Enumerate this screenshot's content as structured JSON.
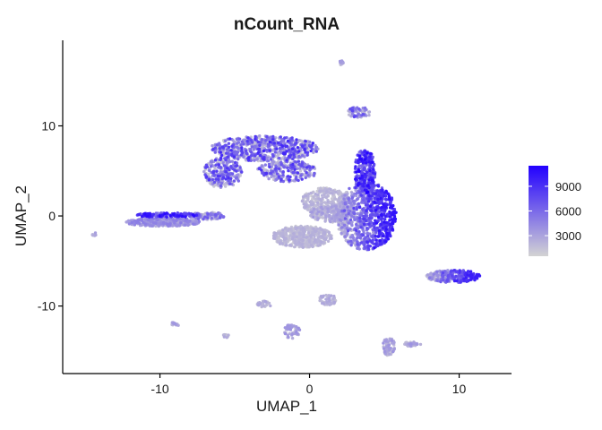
{
  "chart_data": {
    "type": "scatter",
    "title": "nCount_RNA",
    "xlabel": "UMAP_1",
    "ylabel": "UMAP_2",
    "xlim": [
      -16.5,
      13.5
    ],
    "ylim": [
      -17.5,
      19.5
    ],
    "xticks": [
      -10,
      0,
      10
    ],
    "xtick_labels": [
      "-10",
      "0",
      "10"
    ],
    "yticks": [
      -10,
      0,
      10
    ],
    "ytick_labels": [
      "-10",
      "0",
      "10"
    ],
    "grid": false,
    "color_scale": {
      "low_color": "#d3d3d3",
      "high_color": "#2200ff",
      "min": 500,
      "max": 11500,
      "breaks": [
        3000,
        6000,
        9000
      ],
      "break_labels": [
        "3000",
        "6000",
        "9000"
      ],
      "legend_position": "right"
    },
    "clusters": [
      {
        "cx": 2.2,
        "cy": 17.0,
        "rx": 0.2,
        "ry": 0.3,
        "n": 12,
        "lo": 1000,
        "hi": 3500,
        "grad": "none"
      },
      {
        "cx": 3.3,
        "cy": 11.5,
        "rx": 0.8,
        "ry": 0.6,
        "n": 60,
        "lo": 1500,
        "hi": 8000,
        "grad": "random"
      },
      {
        "cx": -3.0,
        "cy": 7.5,
        "rx": 3.6,
        "ry": 1.4,
        "n": 650,
        "lo": 1000,
        "hi": 9500,
        "grad": "random"
      },
      {
        "cx": -5.8,
        "cy": 4.8,
        "rx": 1.3,
        "ry": 1.7,
        "n": 250,
        "lo": 1000,
        "hi": 9000,
        "grad": "random"
      },
      {
        "cx": -1.5,
        "cy": 5.0,
        "rx": 2.0,
        "ry": 1.2,
        "n": 250,
        "lo": 1000,
        "hi": 9000,
        "grad": "random"
      },
      {
        "cx": 3.7,
        "cy": 5.0,
        "rx": 0.7,
        "ry": 2.5,
        "n": 250,
        "lo": 5000,
        "hi": 11500,
        "grad": "random"
      },
      {
        "cx": 3.8,
        "cy": 0.0,
        "rx": 2.0,
        "ry": 3.8,
        "n": 900,
        "lo": 1500,
        "hi": 10500,
        "grad": "right"
      },
      {
        "cx": 1.0,
        "cy": 1.6,
        "rx": 1.6,
        "ry": 1.5,
        "n": 300,
        "lo": 800,
        "hi": 2500,
        "grad": "none"
      },
      {
        "cx": -0.5,
        "cy": -2.3,
        "rx": 2.0,
        "ry": 1.2,
        "n": 450,
        "lo": 800,
        "hi": 2500,
        "grad": "none"
      },
      {
        "cx": 1.5,
        "cy": 0.3,
        "rx": 1.5,
        "ry": 1.0,
        "n": 200,
        "lo": 1000,
        "hi": 3500,
        "grad": "none"
      },
      {
        "cx": -9.8,
        "cy": -0.7,
        "rx": 2.5,
        "ry": 0.45,
        "n": 380,
        "lo": 1000,
        "hi": 5000,
        "grad": "none"
      },
      {
        "cx": -9.5,
        "cy": 0.1,
        "rx": 2.2,
        "ry": 0.25,
        "n": 140,
        "lo": 5000,
        "hi": 11000,
        "grad": "none"
      },
      {
        "cx": -6.8,
        "cy": 0.0,
        "rx": 1.3,
        "ry": 0.4,
        "n": 100,
        "lo": 1500,
        "hi": 7000,
        "grad": "random"
      },
      {
        "cx": -14.4,
        "cy": -2.0,
        "rx": 0.15,
        "ry": 0.2,
        "n": 8,
        "lo": 1000,
        "hi": 4000,
        "grad": "none"
      },
      {
        "cx": 9.6,
        "cy": -6.7,
        "rx": 1.8,
        "ry": 0.7,
        "n": 250,
        "lo": 1500,
        "hi": 10000,
        "grad": "right"
      },
      {
        "cx": 1.2,
        "cy": -9.3,
        "rx": 0.6,
        "ry": 0.6,
        "n": 60,
        "lo": 1000,
        "hi": 3000,
        "grad": "none"
      },
      {
        "cx": -3.0,
        "cy": -9.8,
        "rx": 0.5,
        "ry": 0.35,
        "n": 30,
        "lo": 1000,
        "hi": 3000,
        "grad": "none"
      },
      {
        "cx": -1.2,
        "cy": -12.8,
        "rx": 0.55,
        "ry": 0.8,
        "n": 50,
        "lo": 1000,
        "hi": 4000,
        "grad": "none"
      },
      {
        "cx": -9.0,
        "cy": -12.0,
        "rx": 0.35,
        "ry": 0.2,
        "n": 15,
        "lo": 1000,
        "hi": 4000,
        "grad": "none"
      },
      {
        "cx": -5.5,
        "cy": -13.3,
        "rx": 0.3,
        "ry": 0.2,
        "n": 10,
        "lo": 1000,
        "hi": 3000,
        "grad": "none"
      },
      {
        "cx": 5.3,
        "cy": -14.5,
        "rx": 0.4,
        "ry": 1.0,
        "n": 80,
        "lo": 1000,
        "hi": 4000,
        "grad": "none"
      },
      {
        "cx": 6.9,
        "cy": -14.2,
        "rx": 0.55,
        "ry": 0.3,
        "n": 40,
        "lo": 1000,
        "hi": 4000,
        "grad": "none"
      }
    ]
  }
}
